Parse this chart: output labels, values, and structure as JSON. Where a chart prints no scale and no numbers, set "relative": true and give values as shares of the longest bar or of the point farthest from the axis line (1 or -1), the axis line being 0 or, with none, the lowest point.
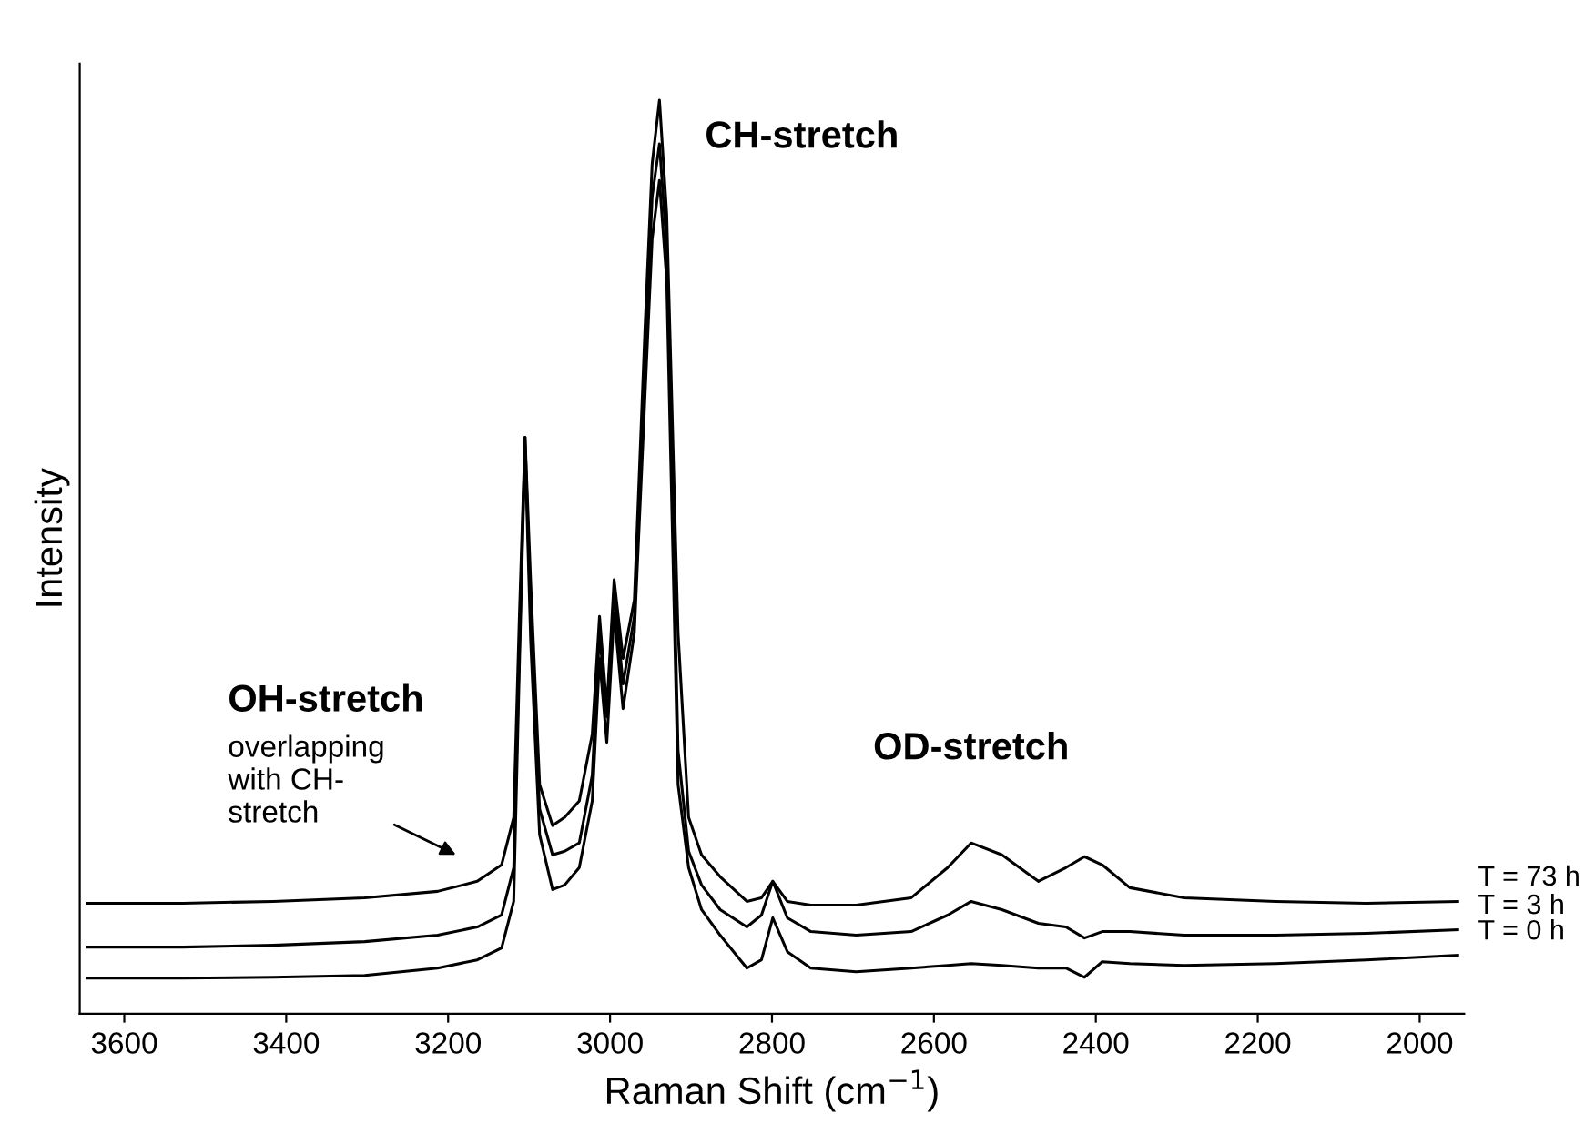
{
  "chart_data": {
    "type": "line",
    "relative": true,
    "xlabel": "Raman Shift (cm$^{−1}$)",
    "ylabel": "Intensity",
    "xlim": [
      3655,
      1945
    ],
    "xticks": [
      3600,
      3400,
      3200,
      3000,
      2800,
      2600,
      2400,
      2200,
      2000
    ],
    "grid": false,
    "legend": false,
    "marker": "none",
    "line_style": "solid",
    "tick_labels": "x",
    "x": [
      3645,
      3528,
      3416,
      3303,
      3213,
      3164,
      3134,
      3119,
      3112,
      3105,
      3098,
      3087,
      3071,
      3056,
      3038,
      3022,
      3013,
      3004,
      2995,
      2984,
      2970,
      2957,
      2948,
      2939,
      2930,
      2916,
      2903,
      2887,
      2864,
      2831,
      2813,
      2799,
      2781,
      2752,
      2696,
      2628,
      2583,
      2554,
      2516,
      2471,
      2437,
      2414,
      2392,
      2358,
      2291,
      2178,
      2066,
      1953
    ],
    "series": [
      {
        "name": "T = 73 h",
        "color": "#000000",
        "values": [
          0.121,
          0.121,
          0.123,
          0.127,
          0.134,
          0.145,
          0.163,
          0.215,
          0.435,
          0.631,
          0.472,
          0.251,
          0.206,
          0.215,
          0.233,
          0.306,
          0.435,
          0.334,
          0.475,
          0.389,
          0.453,
          0.747,
          0.93,
          1,
          0.875,
          0.417,
          0.215,
          0.174,
          0.15,
          0.123,
          0.127,
          0.145,
          0.123,
          0.119,
          0.119,
          0.127,
          0.16,
          0.187,
          0.174,
          0.145,
          0.16,
          0.172,
          0.163,
          0.138,
          0.127,
          0.123,
          0.121,
          0.123
        ]
      },
      {
        "name": "T = 3 h",
        "color": "#000000",
        "values": [
          0.073,
          0.073,
          0.075,
          0.079,
          0.086,
          0.095,
          0.108,
          0.16,
          0.398,
          0.631,
          0.435,
          0.224,
          0.174,
          0.178,
          0.187,
          0.261,
          0.417,
          0.325,
          0.462,
          0.361,
          0.435,
          0.71,
          0.894,
          0.952,
          0.839,
          0.288,
          0.178,
          0.141,
          0.114,
          0.095,
          0.108,
          0.145,
          0.105,
          0.09,
          0.086,
          0.09,
          0.108,
          0.123,
          0.114,
          0.099,
          0.095,
          0.083,
          0.09,
          0.09,
          0.086,
          0.086,
          0.088,
          0.092
        ]
      },
      {
        "name": "T = 0 h",
        "color": "#000000",
        "values": [
          0.039,
          0.039,
          0.04,
          0.042,
          0.05,
          0.059,
          0.072,
          0.123,
          0.38,
          0.622,
          0.407,
          0.196,
          0.136,
          0.141,
          0.16,
          0.233,
          0.389,
          0.297,
          0.439,
          0.334,
          0.417,
          0.673,
          0.848,
          0.912,
          0.802,
          0.251,
          0.16,
          0.114,
          0.086,
          0.05,
          0.059,
          0.105,
          0.068,
          0.05,
          0.046,
          0.05,
          0.053,
          0.055,
          0.053,
          0.05,
          0.05,
          0.04,
          0.057,
          0.055,
          0.053,
          0.055,
          0.059,
          0.064
        ]
      }
    ],
    "annotations": [
      {
        "text": "CH-stretch",
        "x": 2939,
        "y": 1
      },
      {
        "text": "OD-stretch",
        "x": 2554,
        "y": 0.187
      },
      "OH-stretch",
      "overlapping\nwith CH-\nstretch"
    ]
  }
}
